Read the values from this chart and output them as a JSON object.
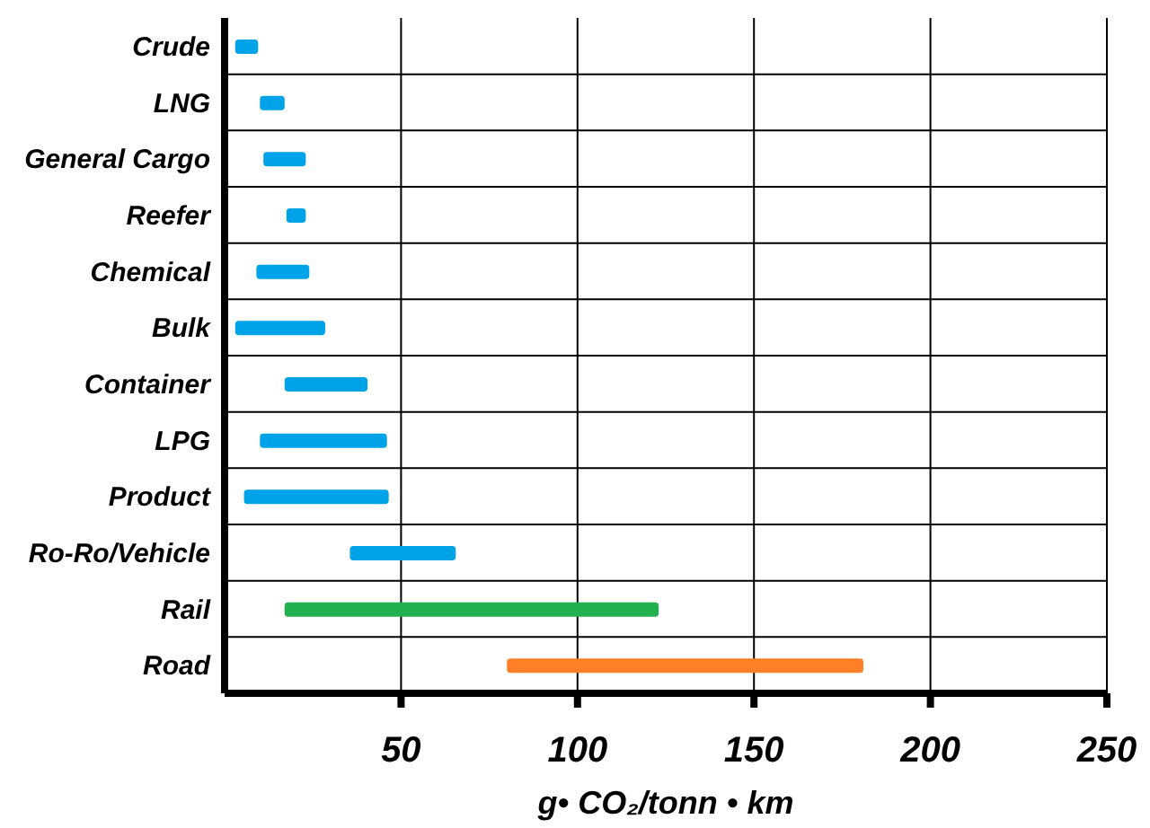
{
  "chart_data": {
    "type": "bar",
    "orientation": "horizontal",
    "xlabel": "g• CO₂/tonn • km",
    "categories": [
      "Crude",
      "LNG",
      "General Cargo",
      "Reefer",
      "Chemical",
      "Bulk",
      "Container",
      "LPG",
      "Product",
      "Ro-Ro/Vehicle",
      "Rail",
      "Road"
    ],
    "base": [
      3,
      10,
      11,
      17.5,
      9,
      3,
      17,
      10,
      5.5,
      35.5,
      17,
      80
    ],
    "values": [
      6.5,
      7,
      12,
      5.5,
      15,
      25.5,
      23.5,
      36,
      41,
      30,
      106,
      101
    ],
    "colors": [
      "#00a2e8",
      "#00a2e8",
      "#00a2e8",
      "#00a2e8",
      "#00a2e8",
      "#00a2e8",
      "#00a2e8",
      "#00a2e8",
      "#00a2e8",
      "#00a2e8",
      "#22b14c",
      "#ff7f27"
    ],
    "xlim": [
      0,
      250
    ],
    "xticks": [
      50,
      100,
      150,
      200,
      250
    ],
    "grid": true
  }
}
